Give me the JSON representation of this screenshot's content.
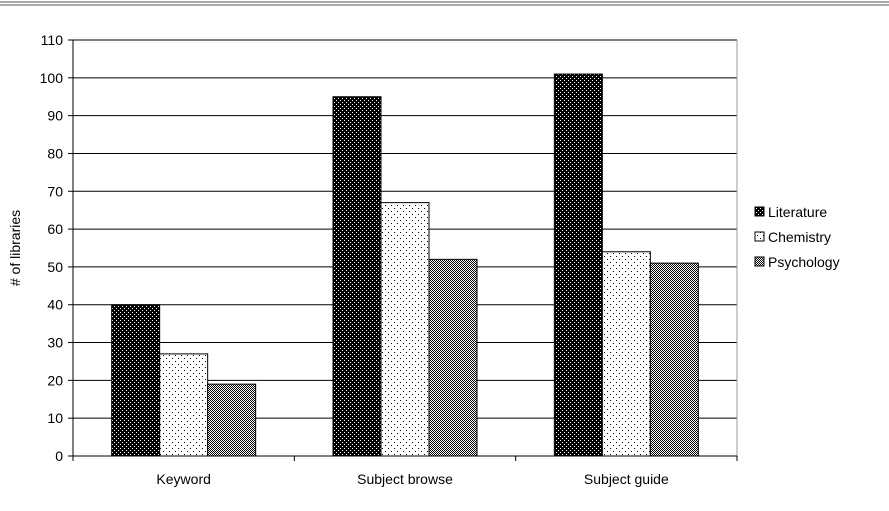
{
  "chart_data": {
    "type": "bar",
    "title": "",
    "xlabel": "",
    "ylabel": "# of libraries",
    "ylim": [
      0,
      110
    ],
    "yticks": [
      0,
      10,
      20,
      30,
      40,
      50,
      60,
      70,
      80,
      90,
      100,
      110
    ],
    "grid": true,
    "legend_position": "right",
    "categories": [
      "Keyword",
      "Subject browse",
      "Subject guide"
    ],
    "series": [
      {
        "name": "Literature",
        "values": [
          40,
          95,
          101
        ],
        "pattern": "dense-dots",
        "color": "#000000"
      },
      {
        "name": "Chemistry",
        "values": [
          27,
          67,
          54
        ],
        "pattern": "sparse-dots",
        "color": "#ffffff"
      },
      {
        "name": "Psychology",
        "values": [
          19,
          52,
          51
        ],
        "pattern": "checker",
        "color": "#777777"
      }
    ]
  }
}
